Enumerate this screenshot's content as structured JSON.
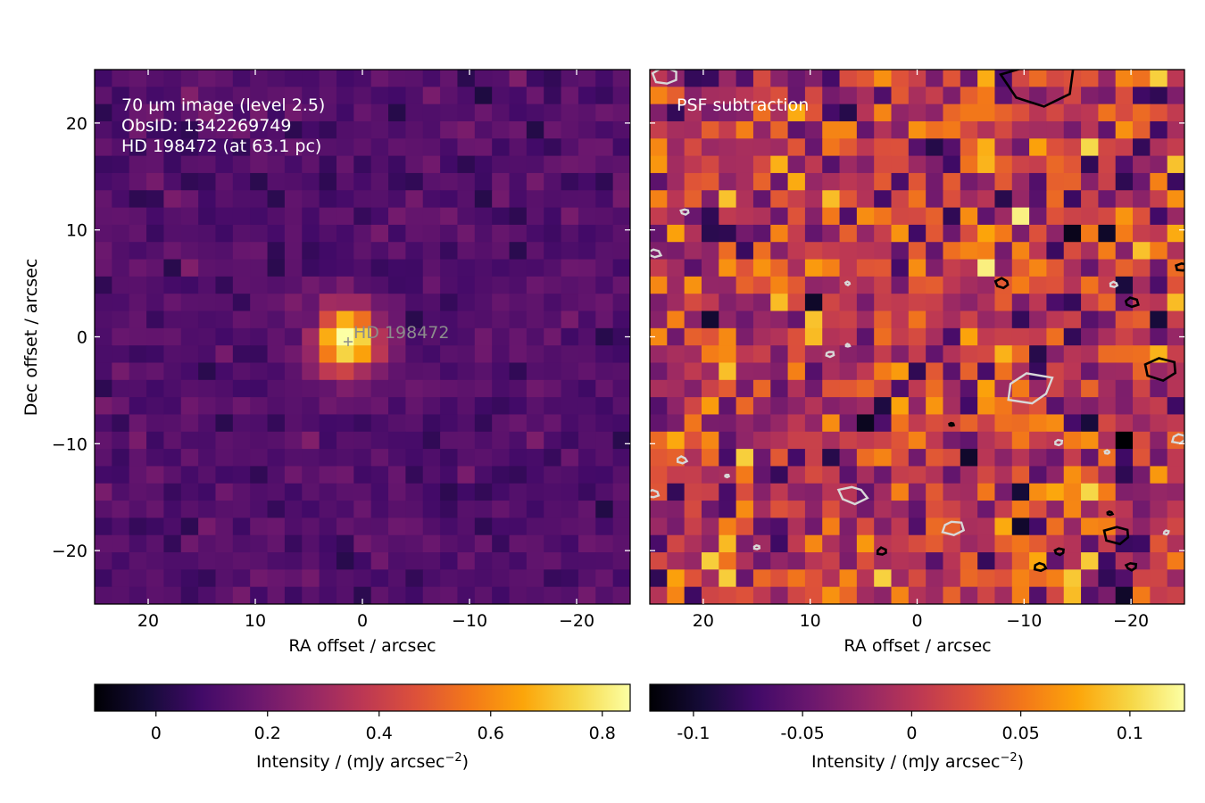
{
  "figure": {
    "left_panel": {
      "annotation_lines": [
        "70 µm image (level 2.5)",
        "ObsID: 1342269749",
        "HD 198472 (at 63.1 pc)"
      ],
      "star_label": "HD 198472",
      "xlabel": "RA offset / arcsec",
      "ylabel": "Dec offset / arcsec"
    },
    "right_panel": {
      "annotation": "PSF subtraction",
      "xlabel": "RA offset / arcsec"
    },
    "colorbars": [
      {
        "label": "Intensity / (mJy arcsec⁻²)",
        "ticks": [
          "0",
          "0.2",
          "0.4",
          "0.6",
          "0.8"
        ]
      },
      {
        "label": "Intensity / (mJy arcsec⁻²)",
        "ticks": [
          "-0.1",
          "-0.05",
          "0",
          "0.05",
          "0.1"
        ]
      }
    ]
  },
  "chart_data": [
    {
      "type": "heatmap",
      "title": "",
      "colormap": "inferno",
      "xlabel": "RA offset / arcsec",
      "ylabel": "Dec offset / arcsec",
      "xlim": [
        25,
        -25
      ],
      "ylim": [
        -25,
        25
      ],
      "xticks": [
        20,
        10,
        0,
        -10,
        -20
      ],
      "xtick_labels": [
        "20",
        "10",
        "0",
        "−10",
        "−20"
      ],
      "yticks": [
        20,
        10,
        0,
        -10,
        -20
      ],
      "ytick_labels": [
        "20",
        "10",
        "0",
        "−10",
        "−20"
      ],
      "grid_cells": [
        31,
        31
      ],
      "background_level": 0.12,
      "source": {
        "name": "HD 198472",
        "ra_offset": 1.5,
        "dec_offset": -0.5,
        "peak": 0.8,
        "fwhm_arcsec": 5
      },
      "marker": {
        "ra_offset": 1.2,
        "dec_offset": -0.3,
        "symbol": "+"
      },
      "color_range": [
        -0.11,
        0.85
      ],
      "colorbar_label": "Intensity / (mJy arcsec⁻²)",
      "colorbar_ticks": [
        0,
        0.2,
        0.4,
        0.6,
        0.8
      ]
    },
    {
      "type": "heatmap",
      "title": "",
      "colormap": "inferno",
      "xlabel": "RA offset / arcsec",
      "xlim": [
        25,
        -25
      ],
      "ylim": [
        -25,
        25
      ],
      "xticks": [
        20,
        10,
        0,
        -10,
        -20
      ],
      "xtick_labels": [
        "20",
        "10",
        "0",
        "−10",
        "−20"
      ],
      "grid_cells": [
        31,
        31
      ],
      "background_level": 0.0,
      "color_range": [
        -0.12,
        0.125
      ],
      "contours": {
        "negative_color": "#d8d8d8",
        "positive_color": "#000000"
      },
      "colorbar_label": "Intensity / (mJy arcsec⁻²)",
      "colorbar_ticks": [
        -0.1,
        -0.05,
        0,
        0.05,
        0.1
      ],
      "colorbar_tick_labels": [
        "-0.1",
        "-0.05",
        "0",
        "0.05",
        "0.1"
      ]
    }
  ]
}
